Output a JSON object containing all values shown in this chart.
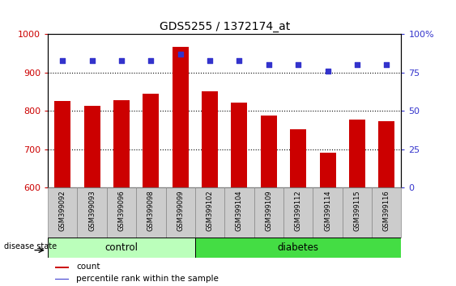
{
  "title": "GDS5255 / 1372174_at",
  "samples": [
    "GSM399092",
    "GSM399093",
    "GSM399096",
    "GSM399098",
    "GSM399099",
    "GSM399102",
    "GSM399104",
    "GSM399109",
    "GSM399112",
    "GSM399114",
    "GSM399115",
    "GSM399116"
  ],
  "counts": [
    825,
    812,
    828,
    845,
    968,
    852,
    822,
    787,
    752,
    690,
    778,
    772
  ],
  "percentile_ranks": [
    83,
    83,
    83,
    83,
    87,
    83,
    83,
    80,
    80,
    76,
    80,
    80
  ],
  "groups": [
    "control",
    "control",
    "control",
    "control",
    "control",
    "diabetes",
    "diabetes",
    "diabetes",
    "diabetes",
    "diabetes",
    "diabetes",
    "diabetes"
  ],
  "bar_color": "#cc0000",
  "dot_color": "#3333cc",
  "ylim_left": [
    600,
    1000
  ],
  "ylim_right": [
    0,
    100
  ],
  "yticks_left": [
    600,
    700,
    800,
    900,
    1000
  ],
  "yticks_right": [
    0,
    25,
    50,
    75,
    100
  ],
  "grid_values": [
    700,
    800,
    900
  ],
  "control_color": "#bbffbb",
  "diabetes_color": "#44dd44",
  "ylabel_color_left": "#cc0000",
  "ylabel_color_right": "#3333cc",
  "bar_width": 0.55,
  "tick_bg_color": "#cccccc",
  "n_control": 5,
  "n_diabetes": 7
}
